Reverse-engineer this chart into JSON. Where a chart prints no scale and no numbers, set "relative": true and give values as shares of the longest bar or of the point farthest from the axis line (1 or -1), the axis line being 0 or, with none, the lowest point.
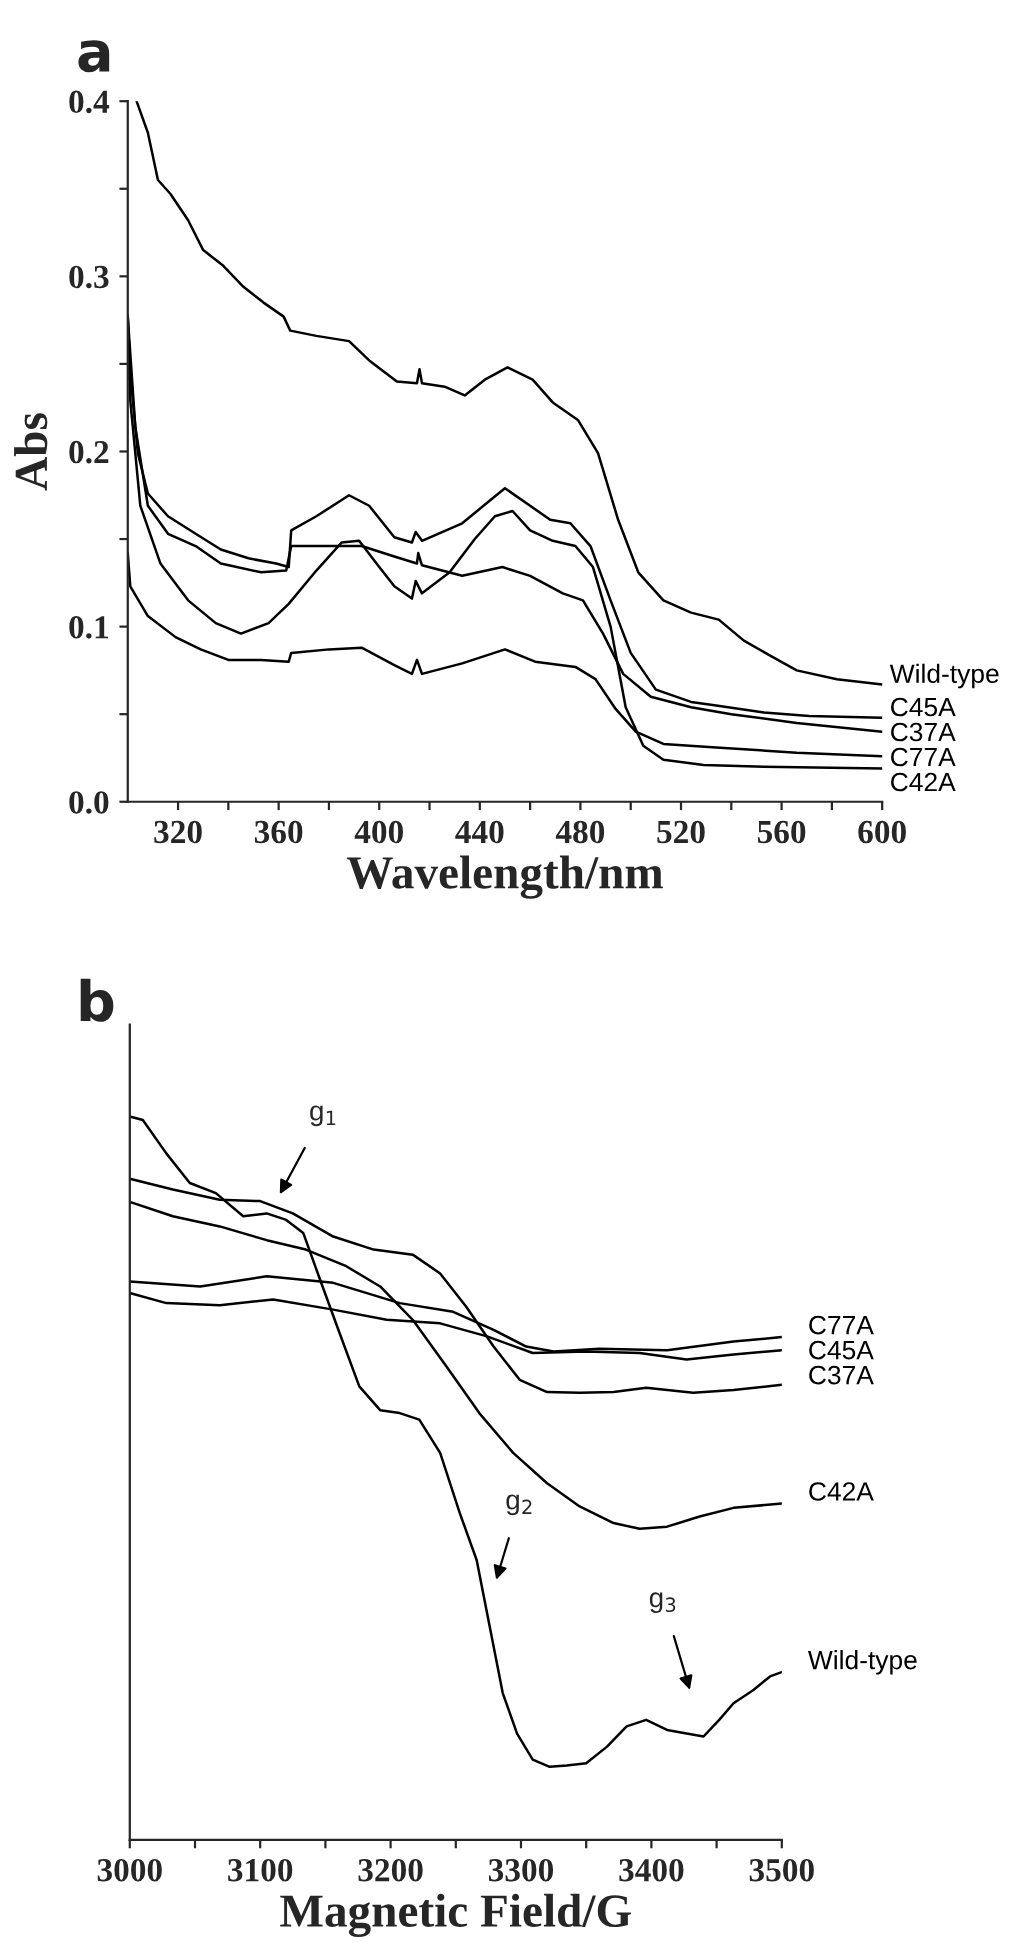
{
  "chart_data": [
    {
      "type": "line",
      "title": "a",
      "xlabel": "Wavelength/nm",
      "ylabel": "Abs",
      "legend": false,
      "grid": false,
      "xlim": [
        300,
        600
      ],
      "ylim": [
        0,
        0.4
      ],
      "xticks": [
        320,
        {
          "value": 340,
          "label": null
        },
        360,
        {
          "value": 380,
          "label": null
        },
        400,
        {
          "value": 420,
          "label": null
        },
        440,
        {
          "value": 460,
          "label": null
        },
        480,
        {
          "value": 500,
          "label": null
        },
        520,
        {
          "value": 540,
          "label": null
        },
        560,
        {
          "value": 580,
          "label": null
        },
        600
      ],
      "yticks": [
        {
          "value": 0,
          "label": "0.0"
        },
        {
          "value": 0.05,
          "label": null
        },
        0.1,
        {
          "value": 0.15,
          "label": null
        },
        0.2,
        {
          "value": 0.25,
          "label": null
        },
        0.3,
        {
          "value": 0.35,
          "label": null
        },
        0.4
      ],
      "series": [
        {
          "name": "Wild-type",
          "color": "#000000",
          "x": [
            303.5,
            308,
            312,
            317,
            324,
            330,
            338,
            346,
            354,
            362,
            364.6,
            375,
            388,
            396,
            407,
            415,
            416,
            417,
            426,
            434,
            442,
            451,
            461,
            469,
            479,
            487,
            495,
            503,
            513,
            524,
            535,
            545,
            556,
            566,
            582,
            600
          ],
          "values": [
            0.4,
            0.382,
            0.355,
            0.347,
            0.332,
            0.315,
            0.306,
            0.294,
            0.285,
            0.277,
            0.269,
            0.266,
            0.263,
            0.252,
            0.24,
            0.239,
            0.247,
            0.239,
            0.237,
            0.232,
            0.241,
            0.248,
            0.241,
            0.228,
            0.218,
            0.199,
            0.161,
            0.131,
            0.115,
            0.108,
            0.104,
            0.092,
            0.083,
            0.075,
            0.07,
            0.067
          ]
        },
        {
          "name": "C45A",
          "color": "#000000",
          "x": [
            300,
            301,
            304,
            308,
            316,
            327,
            337,
            348,
            359,
            364,
            365,
            375,
            388,
            396,
            406,
            413,
            414.5,
            417,
            433,
            444,
            450,
            460,
            468,
            476,
            484,
            492,
            500,
            510,
            524,
            534,
            553,
            571,
            600
          ],
          "values": [
            0.277,
            0.245,
            0.199,
            0.176,
            0.163,
            0.153,
            0.144,
            0.139,
            0.136,
            0.134,
            0.155,
            0.163,
            0.175,
            0.169,
            0.151,
            0.148,
            0.154,
            0.149,
            0.159,
            0.172,
            0.179,
            0.169,
            0.161,
            0.159,
            0.146,
            0.115,
            0.085,
            0.064,
            0.057,
            0.055,
            0.051,
            0.049,
            0.048
          ]
        },
        {
          "name": "C37A",
          "color": "#000000",
          "x": [
            300,
            303,
            308,
            316,
            327,
            337,
            353,
            363,
            365,
            380,
            393,
            406,
            415,
            415.5,
            417,
            433,
            449,
            460,
            473,
            481,
            489,
            497,
            508,
            524,
            540,
            566,
            600
          ],
          "values": [
            0.277,
            0.214,
            0.169,
            0.153,
            0.146,
            0.136,
            0.131,
            0.132,
            0.146,
            0.146,
            0.146,
            0.14,
            0.136,
            0.142,
            0.135,
            0.129,
            0.134,
            0.129,
            0.119,
            0.115,
            0.096,
            0.073,
            0.06,
            0.054,
            0.05,
            0.045,
            0.04
          ]
        },
        {
          "name": "C77A",
          "color": "#000000",
          "x": [
            300,
            301,
            308,
            319,
            329,
            340,
            353,
            364,
            365,
            380,
            393,
            406,
            413,
            415,
            417,
            433,
            450,
            462,
            478,
            486,
            494,
            502,
            513,
            534,
            566,
            600
          ],
          "values": [
            0.142,
            0.123,
            0.106,
            0.094,
            0.087,
            0.081,
            0.081,
            0.08,
            0.085,
            0.087,
            0.088,
            0.078,
            0.073,
            0.081,
            0.073,
            0.079,
            0.087,
            0.08,
            0.077,
            0.07,
            0.053,
            0.04,
            0.033,
            0.031,
            0.028,
            0.026
          ]
        },
        {
          "name": "C42A",
          "color": "#000000",
          "x": [
            300,
            301,
            305,
            313,
            324,
            335,
            345,
            356,
            364,
            375,
            385,
            392,
            400,
            406,
            413,
            414.5,
            417,
            428,
            438,
            446,
            453,
            460,
            469,
            478,
            485,
            492,
            498,
            505,
            513,
            529,
            553,
            600
          ],
          "values": [
            0.275,
            0.229,
            0.169,
            0.136,
            0.115,
            0.102,
            0.096,
            0.102,
            0.113,
            0.132,
            0.148,
            0.149,
            0.134,
            0.123,
            0.116,
            0.126,
            0.119,
            0.131,
            0.15,
            0.163,
            0.166,
            0.155,
            0.149,
            0.146,
            0.134,
            0.1,
            0.054,
            0.032,
            0.024,
            0.021,
            0.02,
            0.019
          ]
        }
      ]
    },
    {
      "type": "line",
      "title": "b",
      "xlabel": "Magnetic Field/G",
      "legend": false,
      "grid": false,
      "relative": true,
      "tick_labels": "x",
      "xlim": [
        3000,
        3500
      ],
      "xticks": [
        3000,
        {
          "value": 3050,
          "label": null
        },
        3100,
        {
          "value": 3150,
          "label": null
        },
        3200,
        {
          "value": 3250,
          "label": null
        },
        3300,
        {
          "value": 3350,
          "label": null
        },
        3400,
        {
          "value": 3450,
          "label": null
        },
        3500
      ],
      "annotations": [
        "g$_{1}$",
        "g$_{2}$",
        "g$_{3}$"
      ],
      "series": [
        {
          "name": "C77A",
          "color": "#000000",
          "x": [
            3000,
            3054,
            3105,
            3156,
            3207,
            3248,
            3279,
            3304,
            3325,
            3360,
            3412,
            3463,
            3500
          ],
          "values": [
            0.772,
            0.765,
            0.779,
            0.77,
            0.742,
            0.73,
            0.705,
            0.682,
            0.675,
            0.679,
            0.677,
            0.689,
            0.695
          ]
        },
        {
          "name": "C45A",
          "color": "#000000",
          "x": [
            3000,
            3028,
            3069,
            3110,
            3156,
            3197,
            3238,
            3274,
            3309,
            3350,
            3391,
            3427,
            3463,
            3500
          ],
          "values": [
            0.756,
            0.742,
            0.739,
            0.747,
            0.733,
            0.719,
            0.714,
            0.696,
            0.673,
            0.675,
            0.673,
            0.664,
            0.671,
            0.677
          ]
        },
        {
          "name": "C37A",
          "color": "#000000",
          "x": [
            3000,
            3033,
            3069,
            3100,
            3125,
            3156,
            3187,
            3217,
            3238,
            3258,
            3279,
            3299,
            3320,
            3345,
            3371,
            3396,
            3432,
            3463,
            3500
          ],
          "values": [
            0.914,
            0.899,
            0.885,
            0.883,
            0.866,
            0.834,
            0.816,
            0.809,
            0.783,
            0.737,
            0.682,
            0.636,
            0.619,
            0.618,
            0.619,
            0.625,
            0.618,
            0.622,
            0.629
          ]
        },
        {
          "name": "C42A",
          "color": "#000000",
          "x": [
            3000,
            3033,
            3069,
            3105,
            3135,
            3166,
            3192,
            3217,
            3243,
            3268,
            3294,
            3320,
            3345,
            3371,
            3391,
            3412,
            3437,
            3463,
            3500
          ],
          "values": [
            0.882,
            0.862,
            0.848,
            0.829,
            0.816,
            0.793,
            0.765,
            0.719,
            0.654,
            0.59,
            0.535,
            0.493,
            0.461,
            0.438,
            0.43,
            0.433,
            0.447,
            0.459,
            0.465
          ]
        },
        {
          "name": "Wild-type",
          "color": "#000000",
          "x": [
            3000,
            3010,
            3028,
            3046,
            3066,
            3087,
            3105,
            3120,
            3133,
            3146,
            3161,
            3176,
            3192,
            3207,
            3222,
            3238,
            3253,
            3266,
            3276,
            3286,
            3297,
            3309,
            3322,
            3335,
            3350,
            3366,
            3381,
            3396,
            3412,
            3427,
            3440,
            3452,
            3463,
            3478,
            3491,
            3500
          ],
          "values": [
            1.0,
            0.995,
            0.949,
            0.908,
            0.894,
            0.862,
            0.866,
            0.857,
            0.839,
            0.774,
            0.7,
            0.627,
            0.594,
            0.59,
            0.581,
            0.535,
            0.452,
            0.387,
            0.295,
            0.203,
            0.147,
            0.111,
            0.101,
            0.103,
            0.106,
            0.129,
            0.157,
            0.166,
            0.152,
            0.147,
            0.143,
            0.166,
            0.189,
            0.207,
            0.226,
            0.232
          ]
        }
      ]
    }
  ]
}
